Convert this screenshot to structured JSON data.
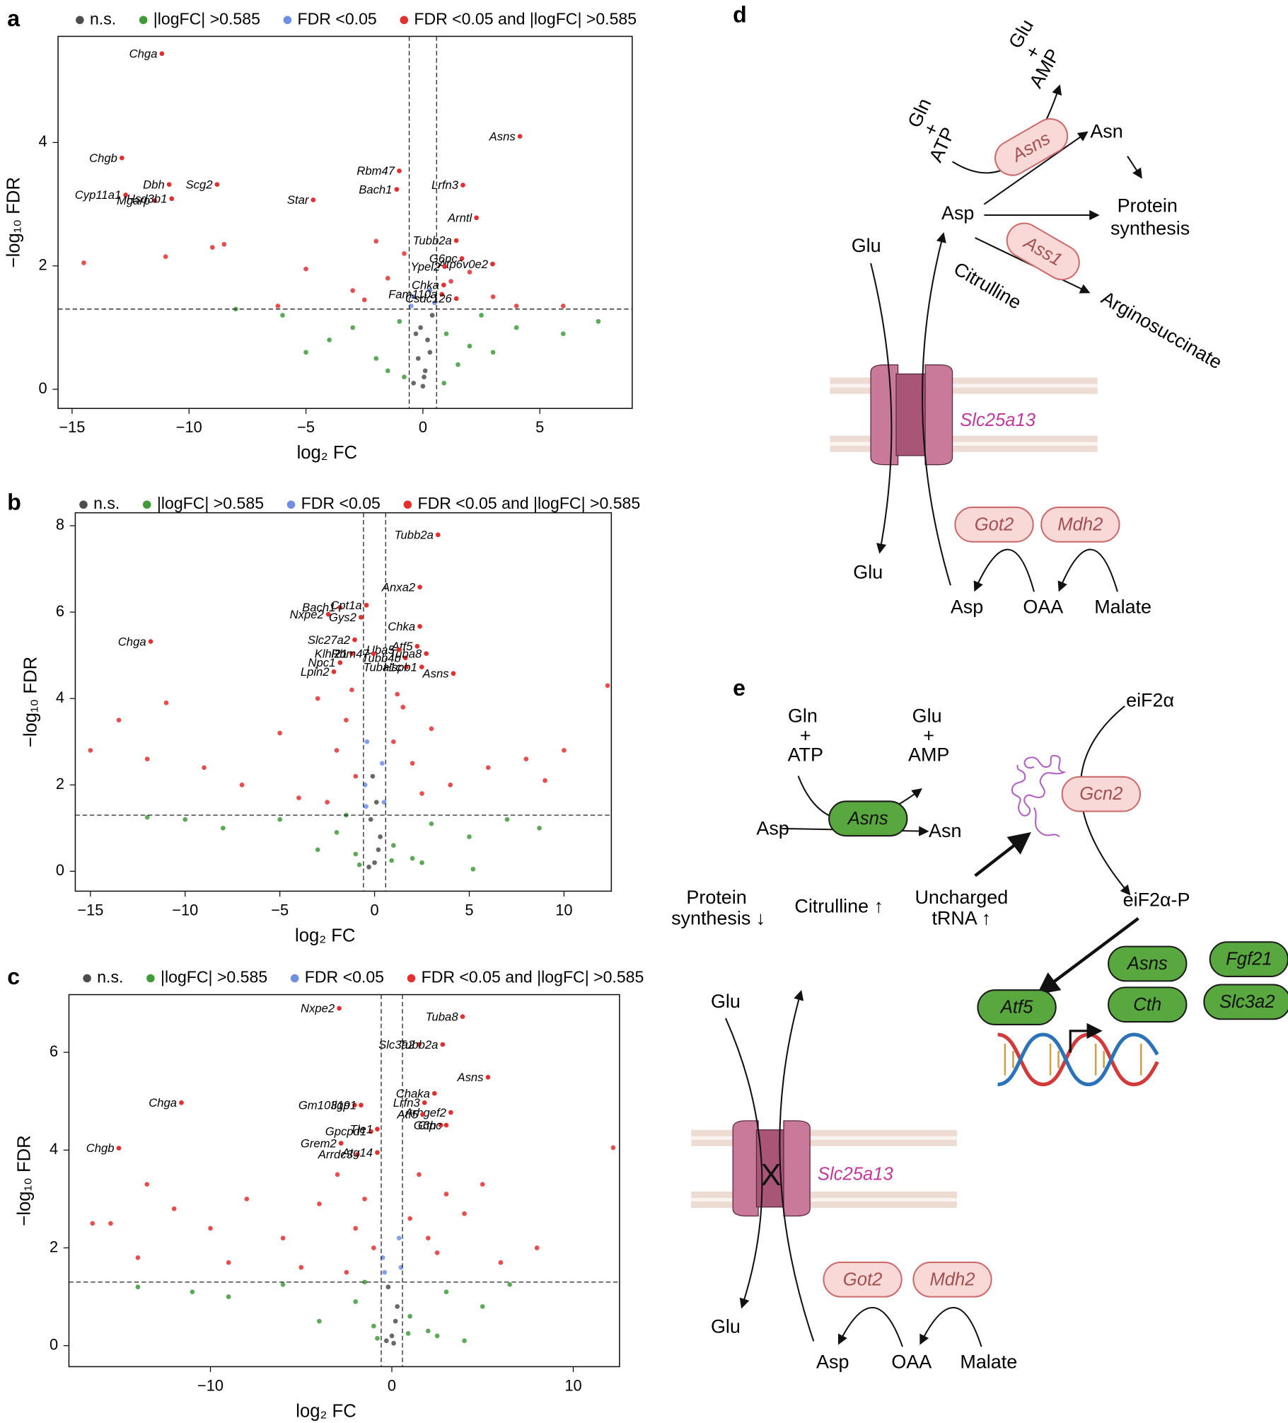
{
  "panel_labels": [
    "a",
    "b",
    "c",
    "d",
    "e"
  ],
  "chart_data": [
    {
      "type": "scatter",
      "xlabel": "log₂ FC",
      "ylabel": "−log₁₀ FDR",
      "xlim": [
        -15.6,
        8.95
      ],
      "ylim": [
        -0.31,
        5.72
      ],
      "xticks": [
        {
          "value": -15,
          "label": "−15"
        },
        {
          "value": -10,
          "label": "−10"
        },
        {
          "value": -5,
          "label": "−5"
        },
        0,
        5
      ],
      "yticks": [
        0,
        2,
        4
      ],
      "vlines": [
        -0.585,
        0.585
      ],
      "hline": 1.3,
      "series": [
        {
          "name": "n.s.",
          "color": "#4d4d4d",
          "x": [
            -0.4,
            -0.2,
            0,
            0.2,
            0.4,
            -0.1,
            0.1,
            0.3,
            -0.3,
            0.05
          ],
          "values": [
            0.1,
            0.5,
            0.05,
            0.8,
            1.2,
            1.0,
            0.3,
            0.6,
            0.9,
            0.2
          ]
        },
        {
          "name": "|logFC| >0.585",
          "color": "#3f9a3a",
          "x": [
            -6,
            -4,
            -3,
            -2,
            -1.5,
            -1,
            1,
            1.5,
            2,
            3,
            4,
            6,
            7.5,
            -8,
            -5,
            2.5,
            -0.8,
            0.9
          ],
          "values": [
            1.2,
            0.8,
            1.0,
            0.5,
            0.3,
            1.1,
            0.9,
            0.4,
            0.7,
            0.6,
            1.0,
            0.9,
            1.1,
            1.3,
            0.6,
            1.2,
            0.2,
            0.1
          ]
        },
        {
          "name": "FDR <0.05",
          "color": "#6f8fe6",
          "x": [
            -0.4,
            0.3,
            0.5,
            -0.5
          ],
          "values": [
            1.5,
            1.6,
            1.4,
            1.35
          ]
        },
        {
          "name": "FDR <0.05 and |logFC| >0.585",
          "color": "#e03030",
          "x": [
            -14.5,
            -11,
            -9,
            -8.5,
            -5,
            -3,
            -2,
            -1.5,
            -0.8,
            2,
            3,
            4,
            -6.2,
            6,
            -2.5,
            1.2
          ],
          "values": [
            2.05,
            2.15,
            2.3,
            2.35,
            1.95,
            1.6,
            2.4,
            1.8,
            2.2,
            1.9,
            1.5,
            1.35,
            1.35,
            1.35,
            1.45,
            1.75
          ]
        }
      ],
      "annotations": [
        {
          "text": "Chga",
          "x": -11.16,
          "y": 5.44
        },
        {
          "text": "Chgb",
          "x": -12.87,
          "y": 3.75
        },
        {
          "text": "Dbh",
          "x": -10.85,
          "y": 3.32
        },
        {
          "text": "Scg2",
          "x": -8.8,
          "y": 3.32
        },
        {
          "text": "Cyp11a1",
          "x": -12.71,
          "y": 3.15
        },
        {
          "text": "Mgarp",
          "x": -11.47,
          "y": 3.06
        },
        {
          "text": "Hsd3b1",
          "x": -10.74,
          "y": 3.09
        },
        {
          "text": "Star",
          "x": -4.69,
          "y": 3.07
        },
        {
          "text": "Rbm47",
          "x": -1.01,
          "y": 3.54
        },
        {
          "text": "Bach1",
          "x": -1.12,
          "y": 3.24
        },
        {
          "text": "Asns",
          "x": 4.15,
          "y": 4.1
        },
        {
          "text": "Lrfn3",
          "x": 1.71,
          "y": 3.31
        },
        {
          "text": "Arntl",
          "x": 2.29,
          "y": 2.78
        },
        {
          "text": "Tubb2a",
          "x": 1.43,
          "y": 2.41
        },
        {
          "text": "G6pc",
          "x": 1.67,
          "y": 2.12
        },
        {
          "text": "Atp6v0e2",
          "x": 2.98,
          "y": 2.03
        },
        {
          "text": "Ypel2",
          "x": 0.93,
          "y": 1.99
        },
        {
          "text": "Chka",
          "x": 0.89,
          "y": 1.69
        },
        {
          "text": "Fam110a",
          "x": 0.81,
          "y": 1.54
        },
        {
          "text": "Csdc126",
          "x": 1.43,
          "y": 1.47
        }
      ]
    },
    {
      "type": "scatter",
      "xlabel": "log₂ FC",
      "ylabel": "−log₁₀ FDR",
      "xlim": [
        -15.8,
        12.5
      ],
      "ylim": [
        -0.46,
        8.3
      ],
      "xticks": [
        {
          "value": -15,
          "label": "−15"
        },
        {
          "value": -10,
          "label": "−10"
        },
        {
          "value": -5,
          "label": "−5"
        },
        0,
        5,
        10
      ],
      "yticks": [
        0,
        2,
        4,
        6,
        8
      ],
      "vlines": [
        -0.585,
        0.585
      ],
      "hline": 1.3,
      "series": [
        {
          "name": "n.s.",
          "color": "#4d4d4d",
          "x": [
            -0.3,
            0,
            0.3,
            -0.2,
            0.2,
            0.1,
            -0.1
          ],
          "values": [
            0.1,
            0.2,
            0.8,
            1.2,
            0.5,
            1.6,
            2.2
          ]
        },
        {
          "name": "|logFC| >0.585",
          "color": "#3f9a3a",
          "x": [
            -12,
            -8,
            -5,
            -3,
            -2,
            -1,
            1,
            2,
            3,
            5,
            7,
            8.7,
            -1.5,
            2.5,
            -10,
            5.2,
            -0.8,
            0.9
          ],
          "values": [
            1.25,
            1.0,
            1.2,
            0.5,
            0.9,
            0.4,
            0.6,
            0.3,
            1.1,
            0.8,
            1.2,
            1.0,
            1.3,
            0.2,
            1.2,
            0.05,
            0.15,
            0.25
          ]
        },
        {
          "name": "FDR <0.05",
          "color": "#6f8fe6",
          "x": [
            -0.5,
            -0.4,
            0.4,
            0.5,
            -0.45
          ],
          "values": [
            2.0,
            3.0,
            2.5,
            1.6,
            1.5
          ]
        },
        {
          "name": "FDR <0.05 and |logFC| >0.585",
          "color": "#e03030",
          "x": [
            -15,
            -13.5,
            -12,
            -11,
            -9,
            -7,
            -5,
            -4,
            -3,
            -2,
            -1.5,
            -1,
            1,
            1.5,
            2,
            3,
            4,
            6,
            8,
            9,
            10,
            12.3,
            -2.5,
            2.5,
            -1.2,
            1.2
          ],
          "values": [
            2.8,
            3.5,
            2.6,
            3.9,
            2.4,
            2.0,
            3.2,
            1.7,
            4.0,
            2.8,
            3.5,
            2.2,
            3.0,
            3.8,
            2.5,
            3.3,
            2.0,
            2.4,
            2.6,
            2.1,
            2.8,
            4.3,
            1.6,
            1.8,
            4.2,
            4.1
          ]
        }
      ],
      "annotations": [
        {
          "text": "Tubb2a",
          "x": 3.35,
          "y": 7.79
        },
        {
          "text": "Anxa2",
          "x": 2.39,
          "y": 6.58
        },
        {
          "text": "Bach1",
          "x": -1.82,
          "y": 6.11
        },
        {
          "text": "Cpt1a",
          "x": -0.43,
          "y": 6.16
        },
        {
          "text": "Nxpe2",
          "x": -2.44,
          "y": 5.95
        },
        {
          "text": "Gys2",
          "x": -0.72,
          "y": 5.88
        },
        {
          "text": "Chka",
          "x": 2.39,
          "y": 5.67
        },
        {
          "text": "Chga",
          "x": -11.82,
          "y": 5.32
        },
        {
          "text": "Slc27a2",
          "x": -1.05,
          "y": 5.36
        },
        {
          "text": "Atf5",
          "x": 2.25,
          "y": 5.21
        },
        {
          "text": "Uba5",
          "x": 1.29,
          "y": 5.13
        },
        {
          "text": "Klhl21",
          "x": -1.2,
          "y": 5.04
        },
        {
          "text": "Rbm47",
          "x": -0.05,
          "y": 5.04
        },
        {
          "text": "Tubb4b",
          "x": 1.63,
          "y": 4.94
        },
        {
          "text": "Tuba8",
          "x": 2.73,
          "y": 5.04
        },
        {
          "text": "Npc1",
          "x": -1.82,
          "y": 4.83
        },
        {
          "text": "Tuba1c",
          "x": 1.67,
          "y": 4.73
        },
        {
          "text": "Hspb1",
          "x": 2.49,
          "y": 4.73
        },
        {
          "text": "Lpin2",
          "x": -2.15,
          "y": 4.62
        },
        {
          "text": "Asns",
          "x": 4.16,
          "y": 4.58
        }
      ]
    },
    {
      "type": "scatter",
      "xlabel": "log₂ FC",
      "ylabel": "−log₁₀ FDR",
      "xlim": [
        -17.8,
        12.55
      ],
      "ylim": [
        -0.43,
        7.18
      ],
      "xticks": [
        {
          "value": -10,
          "label": "−10"
        },
        0,
        10
      ],
      "yticks": [
        0,
        2,
        4,
        6
      ],
      "vlines": [
        -0.585,
        0.585
      ],
      "hline": 1.3,
      "series": [
        {
          "name": "n.s.",
          "color": "#4d4d4d",
          "x": [
            -0.3,
            0,
            0.3,
            -0.2,
            0.2,
            0.1
          ],
          "values": [
            0.1,
            0.2,
            0.8,
            1.2,
            0.5,
            0.05
          ]
        },
        {
          "name": "|logFC| >0.585",
          "color": "#3f9a3a",
          "x": [
            -14,
            -9,
            -6,
            -4,
            -2,
            -1,
            1,
            2,
            3,
            5,
            6.5,
            -1.5,
            2.5,
            -11,
            4,
            -0.8,
            0.9
          ],
          "values": [
            1.2,
            1.0,
            1.25,
            0.5,
            0.9,
            0.4,
            0.6,
            0.3,
            1.1,
            0.8,
            1.25,
            1.3,
            0.2,
            1.1,
            0.1,
            0.15,
            0.25
          ]
        },
        {
          "name": "FDR <0.05",
          "color": "#6f8fe6",
          "x": [
            -0.5,
            -0.4,
            0.4,
            0.5
          ],
          "values": [
            1.8,
            1.5,
            2.2,
            1.6
          ]
        },
        {
          "name": "FDR <0.05 and |logFC| >0.585",
          "color": "#e03030",
          "x": [
            -16.5,
            -15.5,
            -14,
            -13.5,
            -12,
            -10,
            -9,
            -8,
            -6,
            -5,
            -4,
            -3,
            -2,
            -1.5,
            -1,
            1,
            1.5,
            2,
            3,
            4,
            5,
            6,
            8,
            12.2,
            -2.5,
            2.5
          ],
          "values": [
            2.5,
            2.5,
            1.8,
            3.3,
            2.8,
            2.4,
            1.7,
            3.0,
            2.2,
            1.6,
            2.9,
            3.5,
            2.4,
            3.0,
            2.0,
            2.6,
            3.5,
            2.2,
            3.1,
            2.7,
            3.3,
            1.7,
            2.0,
            4.05,
            1.5,
            1.9
          ]
        }
      ],
      "annotations": [
        {
          "text": "Nxpe2",
          "x": -2.9,
          "y": 6.9
        },
        {
          "text": "Tuba8",
          "x": 3.9,
          "y": 6.73
        },
        {
          "text": "Slc3a2",
          "x": 1.5,
          "y": 6.16
        },
        {
          "text": "Tubb2a",
          "x": 2.8,
          "y": 6.16
        },
        {
          "text": "Asns",
          "x": 5.3,
          "y": 5.49
        },
        {
          "text": "Chga",
          "x": -11.6,
          "y": 4.97
        },
        {
          "text": "Chaka",
          "x": 2.35,
          "y": 5.16
        },
        {
          "text": "Lrfn3",
          "x": 1.8,
          "y": 4.97
        },
        {
          "text": "Gm10319",
          "x": -2.05,
          "y": 4.92
        },
        {
          "text": "Iigp1",
          "x": -1.7,
          "y": 4.92
        },
        {
          "text": "Arhgef2",
          "x": 3.25,
          "y": 4.77
        },
        {
          "text": "Atf5",
          "x": 1.7,
          "y": 4.73
        },
        {
          "text": "Cth",
          "x": 2.7,
          "y": 4.51
        },
        {
          "text": "G6pc",
          "x": 3.0,
          "y": 4.51
        },
        {
          "text": "Gpcpd1",
          "x": -1.15,
          "y": 4.38
        },
        {
          "text": "Tle1",
          "x": -0.8,
          "y": 4.43
        },
        {
          "text": "Grem2",
          "x": -2.8,
          "y": 4.14
        },
        {
          "text": "Chgb",
          "x": -15.05,
          "y": 4.04
        },
        {
          "text": "Arrdc3",
          "x": -1.9,
          "y": 3.91
        },
        {
          "text": "Atg14",
          "x": -0.8,
          "y": 3.95
        }
      ]
    }
  ],
  "diagram_d": {
    "labels": [
      "Glu",
      "+",
      "AMP",
      "Gln",
      "+",
      "ATP",
      "Asns",
      "Asn",
      "Protein",
      "synthesis",
      "Asp",
      "Ass1",
      "Citrulline",
      "Arginosuccinate",
      "Glu",
      "Slc25a13",
      "Glu",
      "Got2",
      "Mdh2",
      "Asp",
      "OAA",
      "Malate"
    ]
  },
  "diagram_e": {
    "labels": [
      "Gln",
      "+",
      "ATP",
      "Glu",
      "+",
      "AMP",
      "Asns",
      "Asp",
      "Asn",
      "Protein",
      "synthesis ↓",
      "Citrulline ↑",
      "Uncharged",
      "tRNA ↑",
      "eiF2α",
      "Gcn2",
      "eiF2α-P",
      "Asns",
      "Fgf21",
      "Cth",
      "Slc3a2",
      "Atf5",
      "Slc25a13",
      "Glu",
      "Glu",
      "Got2",
      "Mdh2",
      "Asp",
      "OAA",
      "Malate",
      "X"
    ]
  }
}
